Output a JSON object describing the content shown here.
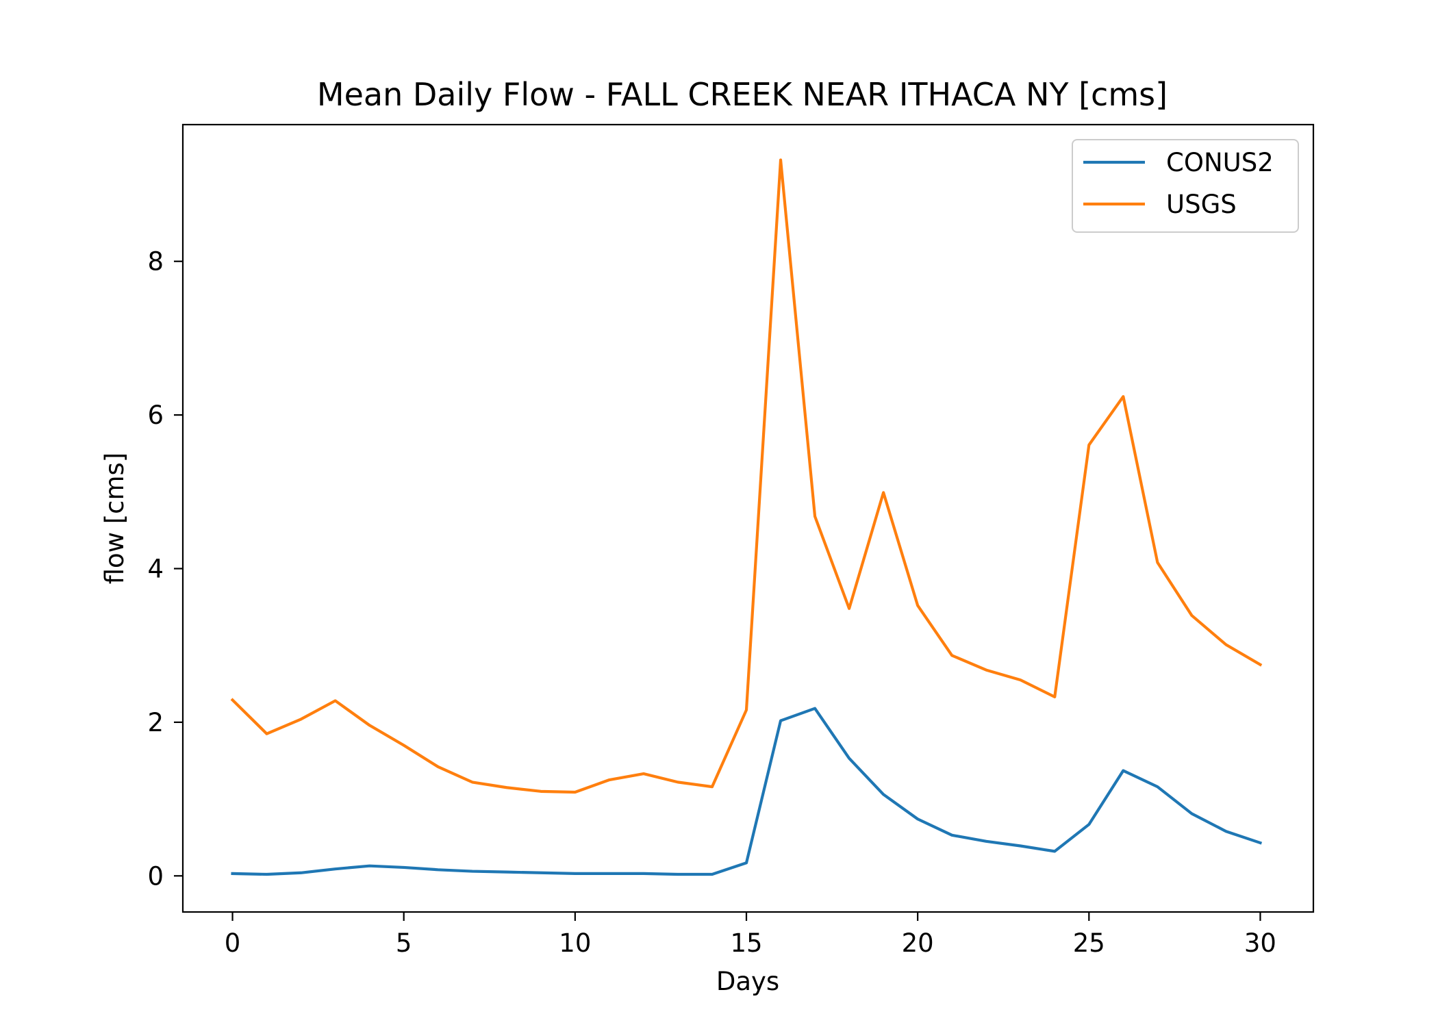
{
  "chart_data": {
    "type": "line",
    "title": "Mean Daily Flow - FALL CREEK NEAR ITHACA NY [cms]",
    "xlabel": "Days",
    "ylabel": "flow [cms]",
    "xlim": [
      -1.45,
      31.55
    ],
    "ylim": [
      -0.47,
      9.78
    ],
    "xticks": [
      0,
      5,
      10,
      15,
      20,
      25,
      30
    ],
    "xtick_labels": [
      "0",
      "5",
      "10",
      "15",
      "20",
      "25",
      "30"
    ],
    "yticks": [
      0,
      2,
      4,
      6,
      8
    ],
    "ytick_labels": [
      "0",
      "2",
      "4",
      "6",
      "8"
    ],
    "grid": false,
    "legend_position": "top-right",
    "x": [
      0,
      1,
      2,
      3,
      4,
      5,
      6,
      7,
      8,
      9,
      10,
      11,
      12,
      13,
      14,
      15,
      16,
      17,
      18,
      19,
      20,
      21,
      22,
      23,
      24,
      25,
      26,
      27,
      28,
      29,
      30
    ],
    "series": [
      {
        "name": "CONUS2",
        "color": "#1f77b4",
        "values": [
          0.03,
          0.02,
          0.04,
          0.09,
          0.13,
          0.11,
          0.08,
          0.06,
          0.05,
          0.04,
          0.03,
          0.03,
          0.03,
          0.02,
          0.02,
          0.17,
          2.02,
          2.18,
          1.53,
          1.06,
          0.74,
          0.53,
          0.45,
          0.39,
          0.32,
          0.67,
          1.37,
          1.16,
          0.81,
          0.58,
          0.43
        ]
      },
      {
        "name": "USGS",
        "color": "#ff7f0e",
        "values": [
          2.29,
          1.85,
          2.04,
          2.28,
          1.96,
          1.7,
          1.42,
          1.22,
          1.15,
          1.1,
          1.09,
          1.25,
          1.33,
          1.22,
          1.16,
          2.16,
          9.32,
          4.68,
          3.48,
          4.99,
          3.52,
          2.87,
          2.68,
          2.55,
          2.33,
          5.61,
          6.24,
          4.08,
          3.39,
          3.01,
          2.75
        ]
      }
    ]
  }
}
